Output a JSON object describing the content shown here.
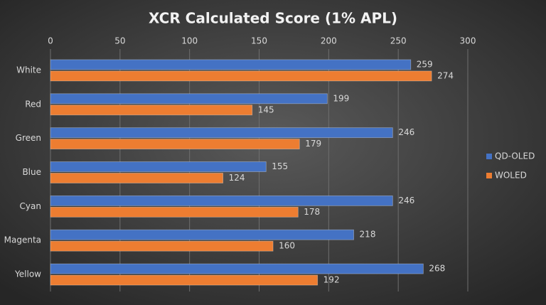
{
  "chart_data": {
    "type": "bar",
    "horizontal": true,
    "title": "XCR Calculated Score (1% APL)",
    "categories": [
      "White",
      "Red",
      "Green",
      "Blue",
      "Cyan",
      "Magenta",
      "Yellow"
    ],
    "series": [
      {
        "name": "QD-OLED",
        "color": "#4472c4",
        "values": [
          259,
          199,
          246,
          155,
          246,
          218,
          268
        ]
      },
      {
        "name": "WOLED",
        "color": "#ed7d31",
        "values": [
          274,
          145,
          179,
          124,
          178,
          160,
          192
        ]
      }
    ],
    "xlim": [
      0,
      300
    ],
    "xticks": [
      0,
      50,
      100,
      150,
      200,
      250,
      300
    ],
    "grid": true,
    "legend": "right"
  }
}
